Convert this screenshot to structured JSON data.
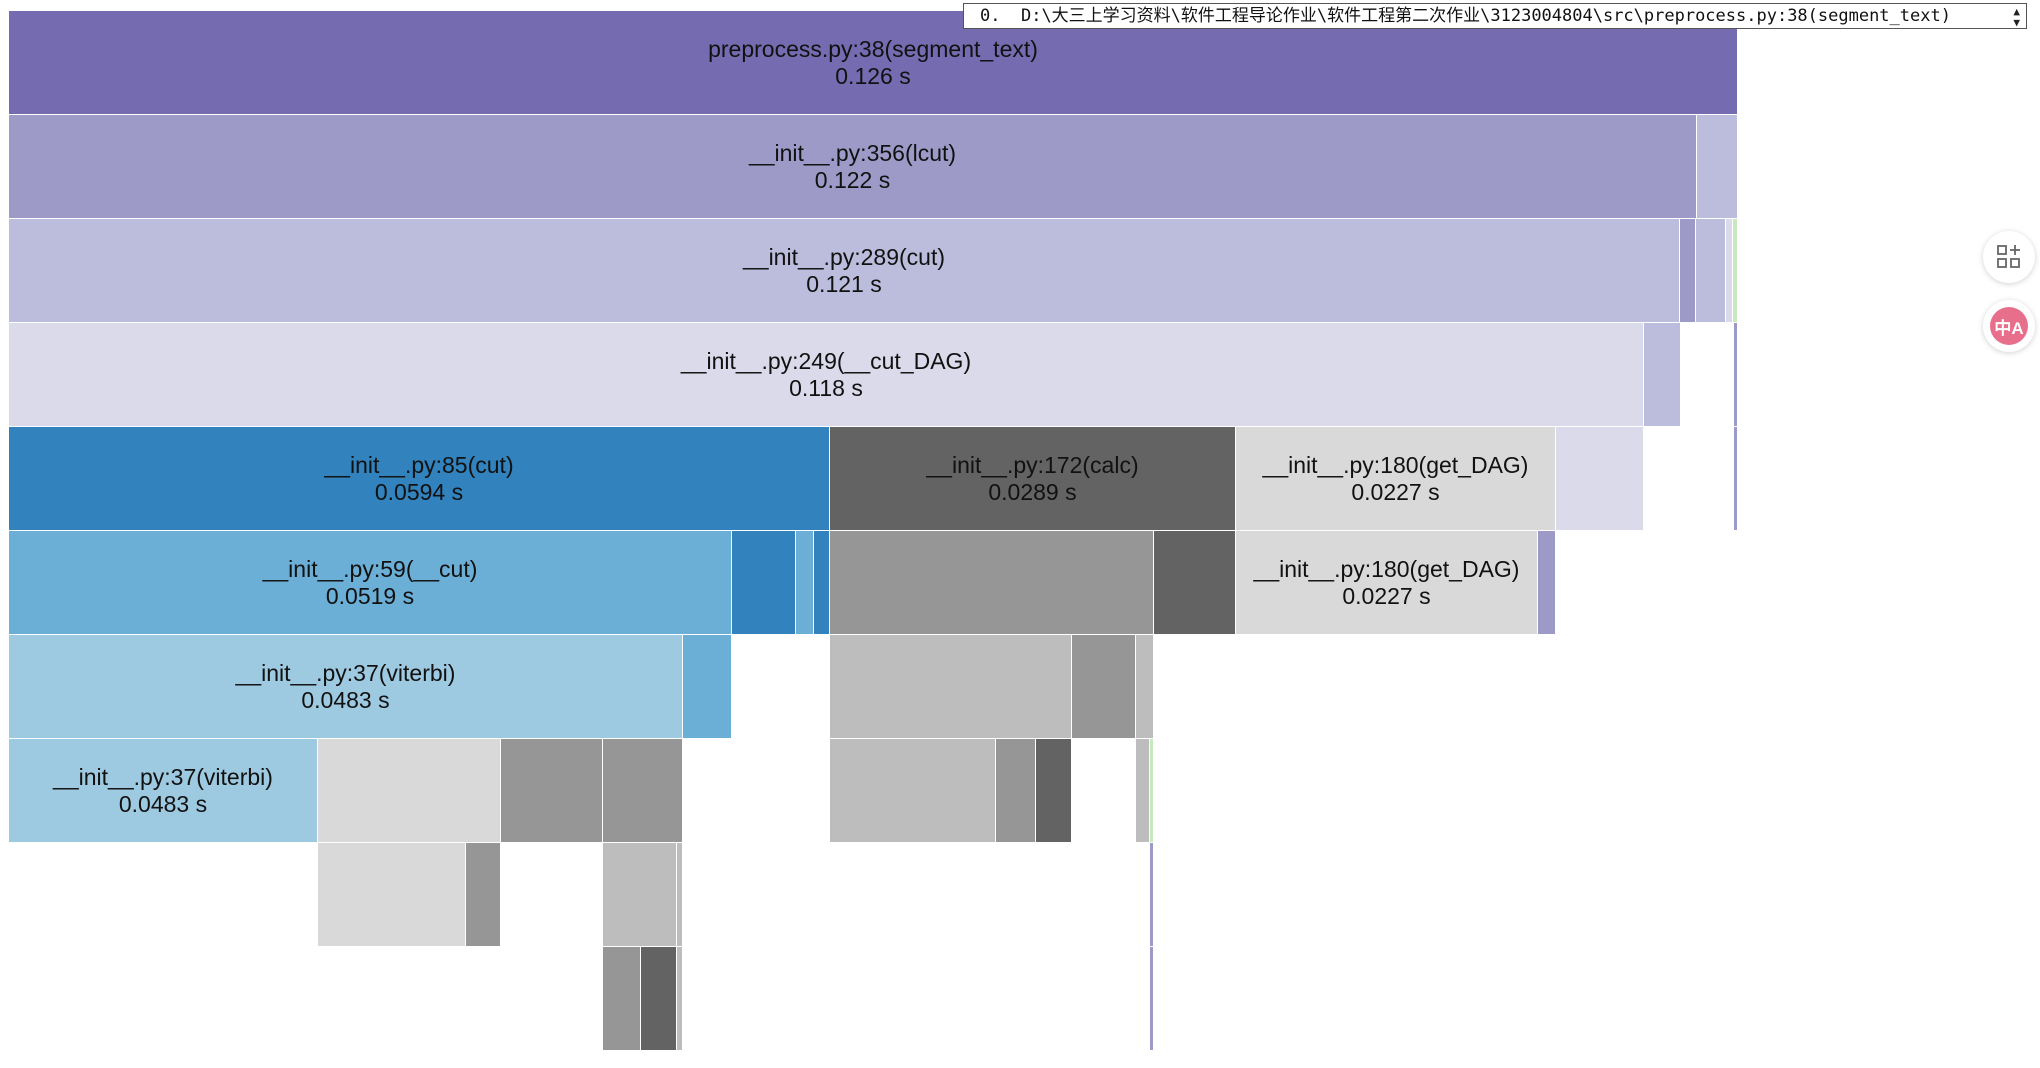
{
  "selector": {
    "index": "0.",
    "value": "D:\\大三上学习资料\\软件工程导论作业\\软件工程第二次作业\\3123004804\\src\\preprocess.py:38(segment_text)"
  },
  "side_buttons": {
    "apps_icon": "apps-grid-icon",
    "translate_icon": "translate-icon",
    "translate_glyph": "中A",
    "translate_color": "#e86f8c"
  },
  "palette": {
    "purple_1": "#756bb1",
    "purple_2": "#9e9ac8",
    "purple_3": "#bcbddc",
    "purple_4": "#dadaeb",
    "blue_1": "#3182bd",
    "blue_2": "#6baed6",
    "blue_3": "#9ecae1",
    "gray_1": "#636363",
    "gray_2": "#969696",
    "gray_3": "#bdbdbd",
    "gray_4": "#d9d9d9",
    "green_1": "#c7e9c0"
  },
  "blocks": [
    {
      "id": "b-root",
      "label": "preprocess.py:38(segment_text)",
      "time": "0.126 s",
      "color": "purple_1"
    },
    {
      "id": "b-lcut",
      "label": "__init__.py:356(lcut)",
      "time": "0.122 s",
      "color": "purple_2"
    },
    {
      "id": "b-lcut-side",
      "label": "",
      "time": "",
      "color": "purple_3"
    },
    {
      "id": "b-cut289",
      "label": "__init__.py:289(cut)",
      "time": "0.121 s",
      "color": "purple_3"
    },
    {
      "id": "b-cut289-s1",
      "label": "",
      "time": "",
      "color": "purple_2"
    },
    {
      "id": "b-cut289-s2",
      "label": "",
      "time": "",
      "color": "purple_3"
    },
    {
      "id": "b-cut289-s3",
      "label": "",
      "time": "",
      "color": "purple_4"
    },
    {
      "id": "b-cut289-s4",
      "label": "",
      "time": "",
      "color": "green_1"
    },
    {
      "id": "b-cutdag",
      "label": "__init__.py:249(__cut_DAG)",
      "time": "0.118 s",
      "color": "purple_4"
    },
    {
      "id": "b-cutdag-s1",
      "label": "",
      "time": "",
      "color": "purple_3"
    },
    {
      "id": "b-cutdag-s2",
      "label": "",
      "time": "",
      "color": "purple_2"
    },
    {
      "id": "b-cut85",
      "label": "__init__.py:85(cut)",
      "time": "0.0594 s",
      "color": "blue_1"
    },
    {
      "id": "b-calc",
      "label": "__init__.py:172(calc)",
      "time": "0.0289 s",
      "color": "gray_1"
    },
    {
      "id": "b-getdag1",
      "label": "__init__.py:180(get_DAG)",
      "time": "0.0227 s",
      "color": "gray_4"
    },
    {
      "id": "b-l5-s1",
      "label": "",
      "time": "",
      "color": "purple_4"
    },
    {
      "id": "b-l5-s2",
      "label": "",
      "time": "",
      "color": "purple_2"
    },
    {
      "id": "b-cut59",
      "label": "__init__.py:59(__cut)",
      "time": "0.0519 s",
      "color": "blue_2"
    },
    {
      "id": "b-l6-b1",
      "label": "",
      "time": "",
      "color": "blue_1"
    },
    {
      "id": "b-l6-b2",
      "label": "",
      "time": "",
      "color": "blue_2"
    },
    {
      "id": "b-l6-b3",
      "label": "",
      "time": "",
      "color": "blue_1"
    },
    {
      "id": "b-l6-g1",
      "label": "",
      "time": "",
      "color": "gray_2"
    },
    {
      "id": "b-l6-g2",
      "label": "",
      "time": "",
      "color": "gray_1"
    },
    {
      "id": "b-getdag2",
      "label": "__init__.py:180(get_DAG)",
      "time": "0.0227 s",
      "color": "gray_4"
    },
    {
      "id": "b-l6-p1",
      "label": "",
      "time": "",
      "color": "purple_2"
    },
    {
      "id": "b-viterbi1",
      "label": "__init__.py:37(viterbi)",
      "time": "0.0483 s",
      "color": "blue_3"
    },
    {
      "id": "b-l7-b1",
      "label": "",
      "time": "",
      "color": "blue_2"
    },
    {
      "id": "b-l7-g1",
      "label": "",
      "time": "",
      "color": "gray_3"
    },
    {
      "id": "b-l7-g2",
      "label": "",
      "time": "",
      "color": "gray_2"
    },
    {
      "id": "b-l7-g3",
      "label": "",
      "time": "",
      "color": "gray_3"
    },
    {
      "id": "b-viterbi2",
      "label": "__init__.py:37(viterbi)",
      "time": "0.0483 s",
      "color": "blue_3"
    },
    {
      "id": "b-l8-g1",
      "label": "",
      "time": "",
      "color": "gray_4"
    },
    {
      "id": "b-l8-g2",
      "label": "",
      "time": "",
      "color": "gray_2"
    },
    {
      "id": "b-l8-g3",
      "label": "",
      "time": "",
      "color": "gray_2"
    },
    {
      "id": "b-l8-g4",
      "label": "",
      "time": "",
      "color": "gray_3"
    },
    {
      "id": "b-l8-g5",
      "label": "",
      "time": "",
      "color": "gray_2"
    },
    {
      "id": "b-l8-g6",
      "label": "",
      "time": "",
      "color": "gray_1"
    },
    {
      "id": "b-l8-g7",
      "label": "",
      "time": "",
      "color": "gray_3"
    },
    {
      "id": "b-l8-g8",
      "label": "",
      "time": "",
      "color": "green_1"
    },
    {
      "id": "b-l9-g1",
      "label": "",
      "time": "",
      "color": "gray_4"
    },
    {
      "id": "b-l9-g2",
      "label": "",
      "time": "",
      "color": "gray_2"
    },
    {
      "id": "b-l9-g3",
      "label": "",
      "time": "",
      "color": "gray_3"
    },
    {
      "id": "b-l9-g4",
      "label": "",
      "time": "",
      "color": "gray_3"
    },
    {
      "id": "b-l9-p1",
      "label": "",
      "time": "",
      "color": "purple_2"
    },
    {
      "id": "b-l10-g1",
      "label": "",
      "time": "",
      "color": "gray_2"
    },
    {
      "id": "b-l10-g2",
      "label": "",
      "time": "",
      "color": "gray_1"
    },
    {
      "id": "b-l10-g3",
      "label": "",
      "time": "",
      "color": "gray_3"
    },
    {
      "id": "b-l10-p1",
      "label": "",
      "time": "",
      "color": "purple_2"
    }
  ]
}
